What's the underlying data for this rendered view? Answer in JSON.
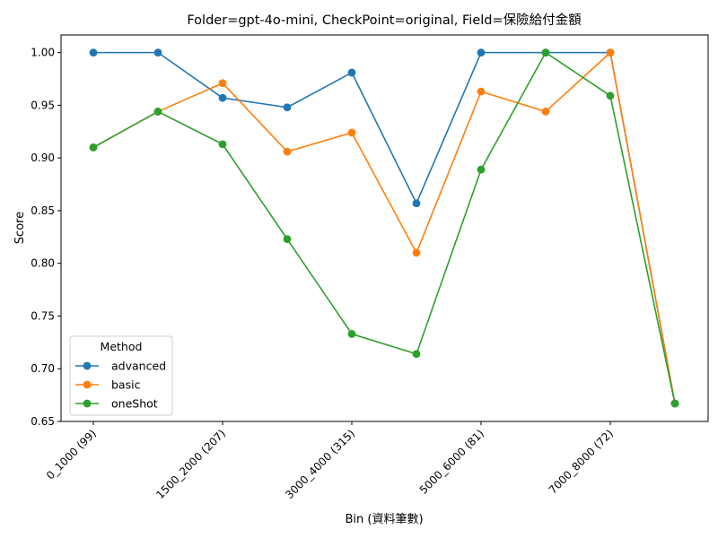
{
  "chart_data": {
    "type": "line",
    "title": "Folder=gpt-4o-mini, CheckPoint=original, Field=保險給付金額",
    "xlabel": "Bin (資料筆數)",
    "ylabel": "Score",
    "ylim": [
      0.65,
      1.0167
    ],
    "yticks": [
      0.65,
      0.7,
      0.75,
      0.8,
      0.85,
      0.9,
      0.95,
      1.0
    ],
    "ytick_labels": [
      "0.65",
      "0.70",
      "0.75",
      "0.80",
      "0.85",
      "0.90",
      "0.95",
      "1.00"
    ],
    "x": [
      0,
      1,
      2,
      3,
      4,
      5,
      6,
      7,
      8,
      9
    ],
    "xticks": [
      0,
      2,
      4,
      6,
      8
    ],
    "xtick_labels": [
      "0_1000 (99)",
      "1500_2000 (207)",
      "3000_4000 (315)",
      "5000_6000 (81)",
      "7000_8000 (72)"
    ],
    "legend": {
      "title": "Method",
      "placement": "lower-left"
    },
    "grid": false,
    "series": [
      {
        "name": "advanced",
        "color": "#1f77b4",
        "values": [
          1.0,
          1.0,
          0.957,
          0.948,
          0.981,
          0.857,
          1.0,
          1.0,
          1.0,
          0.667
        ]
      },
      {
        "name": "basic",
        "color": "#ff7f0e",
        "values": [
          0.91,
          0.944,
          0.971,
          0.906,
          0.924,
          0.81,
          0.963,
          0.944,
          1.0,
          0.667
        ]
      },
      {
        "name": "oneShot",
        "color": "#2ca02c",
        "values": [
          0.91,
          0.944,
          0.913,
          0.823,
          0.733,
          0.714,
          0.889,
          1.0,
          0.959,
          0.667
        ]
      }
    ]
  }
}
